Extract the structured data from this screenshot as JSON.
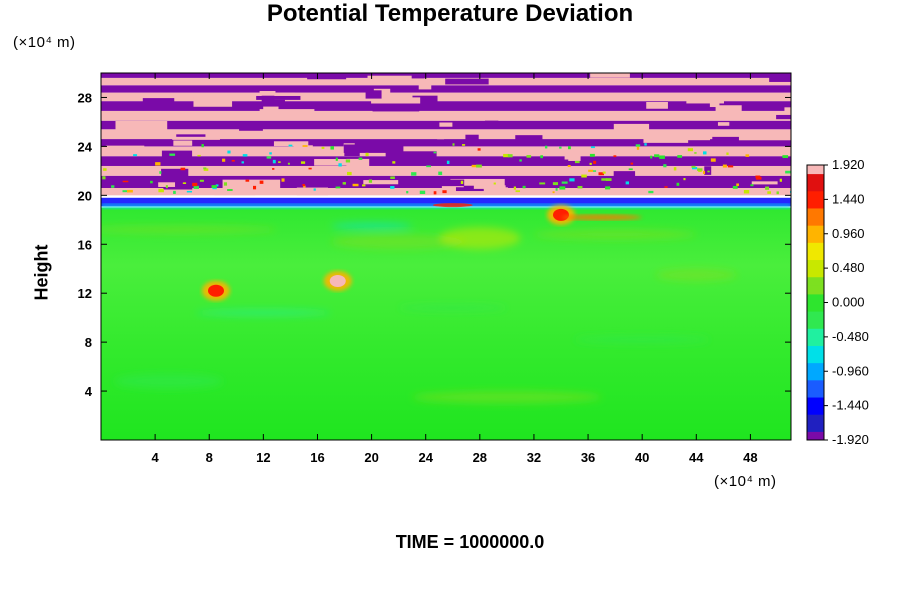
{
  "chart_data": {
    "type": "heatmap",
    "title": "Potential Temperature Deviation",
    "ylabel": "Height",
    "xunit": "(×10⁴ m)",
    "yunit": "(×10⁴ m)",
    "xlim": [
      0,
      51
    ],
    "ylim": [
      0,
      30
    ],
    "xticks": [
      "4",
      "8",
      "12",
      "16",
      "20",
      "24",
      "28",
      "32",
      "36",
      "40",
      "44",
      "48"
    ],
    "yticks": [
      "4",
      "8",
      "12",
      "16",
      "20",
      "24",
      "28"
    ],
    "colorbar": {
      "range": [
        -1.92,
        1.92
      ],
      "ticks": [
        "1.920",
        "1.440",
        "0.960",
        "0.480",
        "0.000",
        "-0.480",
        "-0.960",
        "-1.440",
        "-1.920"
      ]
    },
    "layers": [
      {
        "y_range": [
          0,
          19
        ],
        "dominant_value": 0.0
      },
      {
        "y_range": [
          19,
          20
        ],
        "dominant_value": -1.92
      },
      {
        "y_range": [
          20,
          30
        ],
        "alternating_bands": [
          1.92,
          -1.92
        ]
      }
    ],
    "annotations": [
      {
        "x": 8.5,
        "y": 12.2,
        "value": 1.44
      },
      {
        "x": 17.5,
        "y": 13.0,
        "value": 1.92
      },
      {
        "x": 34.0,
        "y": 18.4,
        "value": 1.44
      }
    ],
    "footer": "TIME = 1000000.0"
  }
}
